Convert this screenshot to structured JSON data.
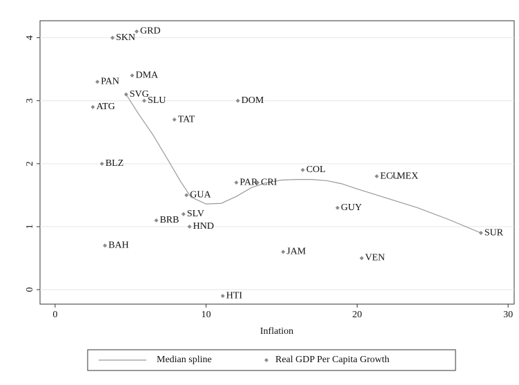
{
  "chart_data": {
    "type": "scatter",
    "xlabel": "Inflation",
    "xlim": [
      -1.0,
      30.4
    ],
    "ylim": [
      -0.23,
      4.27
    ],
    "xticks": [
      0,
      10,
      20,
      30
    ],
    "yticks": [
      0,
      1,
      2,
      3,
      4
    ],
    "grid": true,
    "legend": "bottom",
    "series": [
      {
        "name": "Median spline",
        "type": "line",
        "color": "#999999",
        "x": [
          4.7,
          5.5,
          6.5,
          7.5,
          8.3,
          9.0,
          10.0,
          11.0,
          12.0,
          13.0,
          14.0,
          15.0,
          16.0,
          17.0,
          18.0,
          19.0,
          20.0,
          22.0,
          24.0,
          26.0,
          28.2
        ],
        "values": [
          3.1,
          2.8,
          2.45,
          2.05,
          1.72,
          1.47,
          1.36,
          1.37,
          1.48,
          1.62,
          1.7,
          1.74,
          1.75,
          1.75,
          1.73,
          1.68,
          1.6,
          1.45,
          1.3,
          1.12,
          0.9
        ]
      },
      {
        "name": "Real GDP Per Capita Growth",
        "type": "scatter",
        "color": "#8c8c8c",
        "labels": [
          "SKN",
          "GRD",
          "DMA",
          "PAN",
          "SVG",
          "SLU",
          "ATG",
          "DOM",
          "TAT",
          "BLZ",
          "GUA",
          "PAR",
          "CRI",
          "COL",
          "ECU",
          "MEX",
          "GUY",
          "SLV",
          "BRB",
          "HND",
          "SUR",
          "BAH",
          "JAM",
          "VEN",
          "HTI"
        ],
        "x": [
          3.8,
          5.4,
          5.1,
          2.8,
          4.7,
          5.9,
          2.5,
          12.1,
          7.9,
          3.1,
          8.7,
          12.0,
          13.4,
          16.4,
          21.3,
          22.4,
          18.7,
          8.5,
          6.7,
          8.9,
          28.2,
          3.3,
          15.1,
          20.3,
          11.1
        ],
        "values": [
          4.0,
          4.1,
          3.4,
          3.3,
          3.1,
          3.0,
          2.9,
          3.0,
          2.7,
          2.0,
          1.5,
          1.7,
          1.7,
          1.9,
          1.8,
          1.8,
          1.3,
          1.2,
          1.1,
          1.0,
          0.9,
          0.7,
          0.6,
          0.5,
          -0.1
        ]
      }
    ]
  }
}
